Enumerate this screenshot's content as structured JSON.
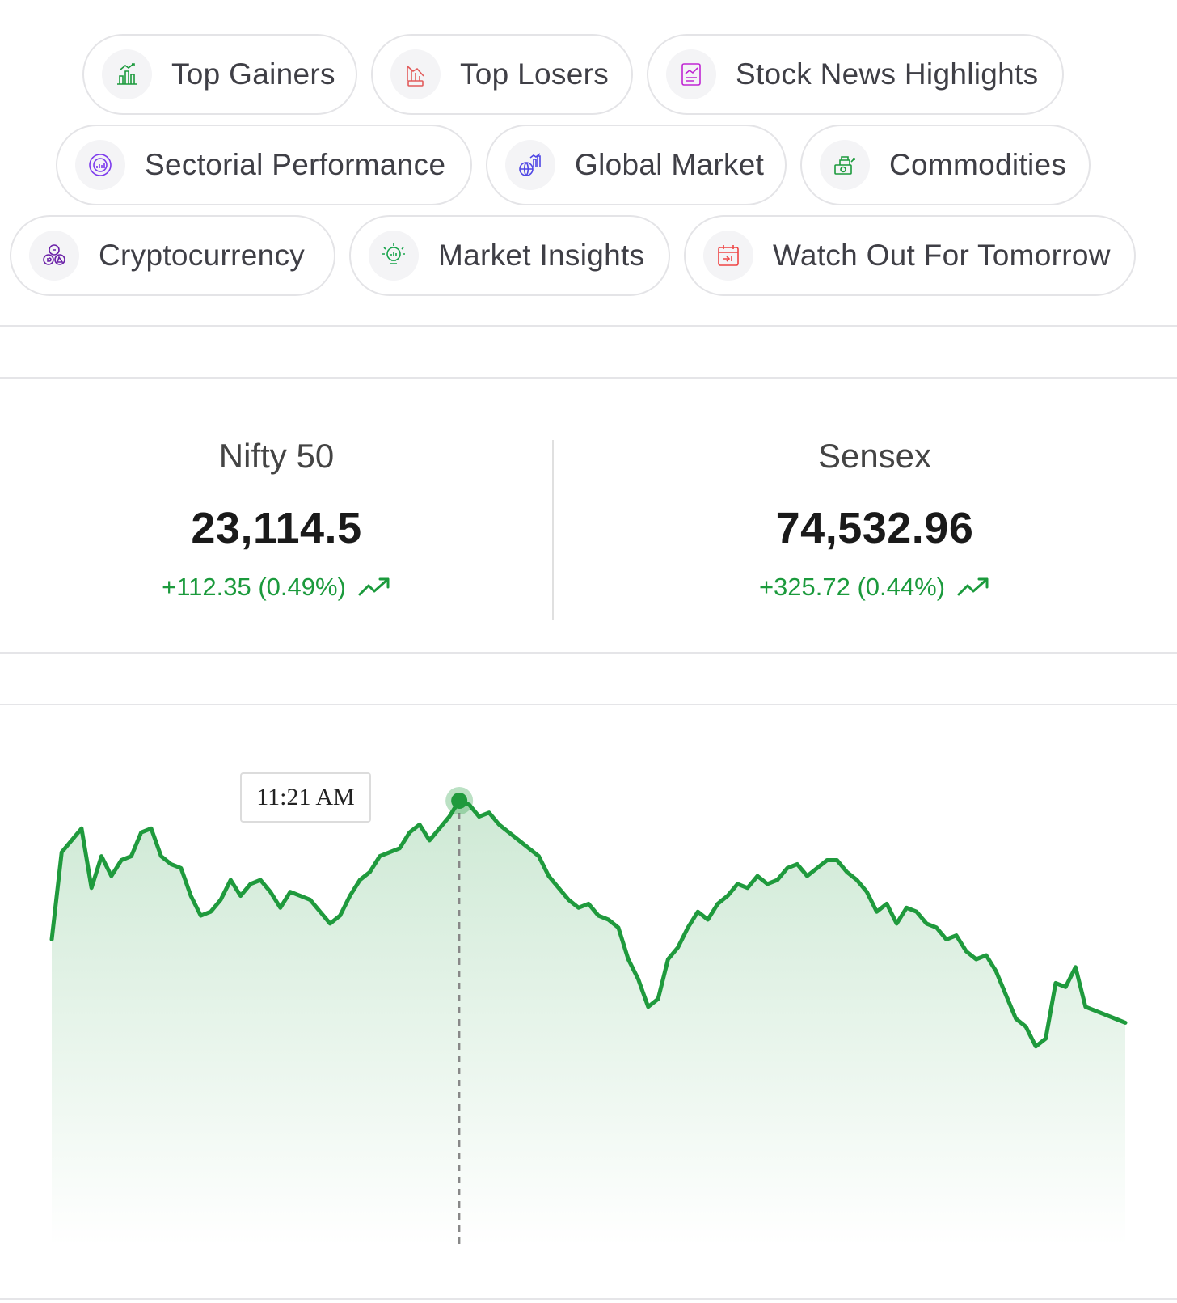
{
  "quick_links": [
    {
      "label": "Top Gainers",
      "icon": "top-gainers-icon",
      "color": "#1b9a3c"
    },
    {
      "label": "Top Losers",
      "icon": "top-losers-icon",
      "color": "#e25b5b"
    },
    {
      "label": "Stock News Highlights",
      "icon": "stock-news-icon",
      "color": "#c026d3"
    },
    {
      "label": "Sectorial Performance",
      "icon": "sectorial-performance-icon",
      "color": "#7c3aed"
    },
    {
      "label": "Global Market",
      "icon": "global-market-icon",
      "color": "#4f46e5"
    },
    {
      "label": "Commodities",
      "icon": "commodities-icon",
      "color": "#1b9a3c"
    },
    {
      "label": "Cryptocurrency",
      "icon": "cryptocurrency-icon",
      "color": "#6b21a8"
    },
    {
      "label": "Market Insights",
      "icon": "market-insights-icon",
      "color": "#16a34a"
    },
    {
      "label": "Watch Out For Tomorrow",
      "icon": "calendar-icon",
      "color": "#ef4444"
    }
  ],
  "indices": [
    {
      "name": "Nifty 50",
      "value": "23,114.5",
      "change": "+112.35 (0.49%)",
      "trend": "up"
    },
    {
      "name": "Sensex",
      "value": "74,532.96",
      "change": "+325.72 (0.44%)",
      "trend": "up"
    }
  ],
  "colors": {
    "positive": "#1b9a3c",
    "line": "#1f9a3d",
    "border": "#e4e4e7"
  },
  "chart_data": {
    "type": "area",
    "title": "",
    "xlabel": "",
    "ylabel": "",
    "grid": false,
    "tooltip": {
      "label": "11:21 AM",
      "point_index": 41
    },
    "values": [
      0.65,
      0.87,
      0.9,
      0.93,
      0.78,
      0.86,
      0.81,
      0.85,
      0.86,
      0.92,
      0.93,
      0.86,
      0.84,
      0.83,
      0.76,
      0.71,
      0.72,
      0.75,
      0.8,
      0.76,
      0.79,
      0.8,
      0.77,
      0.73,
      0.77,
      0.76,
      0.75,
      0.72,
      0.69,
      0.71,
      0.76,
      0.8,
      0.82,
      0.86,
      0.87,
      0.88,
      0.92,
      0.94,
      0.9,
      0.93,
      0.96,
      1.0,
      0.99,
      0.96,
      0.97,
      0.94,
      0.92,
      0.9,
      0.88,
      0.86,
      0.81,
      0.78,
      0.75,
      0.73,
      0.74,
      0.71,
      0.7,
      0.68,
      0.6,
      0.55,
      0.48,
      0.5,
      0.6,
      0.63,
      0.68,
      0.72,
      0.7,
      0.74,
      0.76,
      0.79,
      0.78,
      0.81,
      0.79,
      0.8,
      0.83,
      0.84,
      0.81,
      0.83,
      0.85,
      0.85,
      0.82,
      0.8,
      0.77,
      0.72,
      0.74,
      0.69,
      0.73,
      0.72,
      0.69,
      0.68,
      0.65,
      0.66,
      0.62,
      0.6,
      0.61,
      0.57,
      0.51,
      0.45,
      0.43,
      0.38,
      0.4,
      0.54,
      0.53,
      0.58,
      0.48,
      0.47,
      0.46,
      0.45,
      0.44
    ]
  }
}
